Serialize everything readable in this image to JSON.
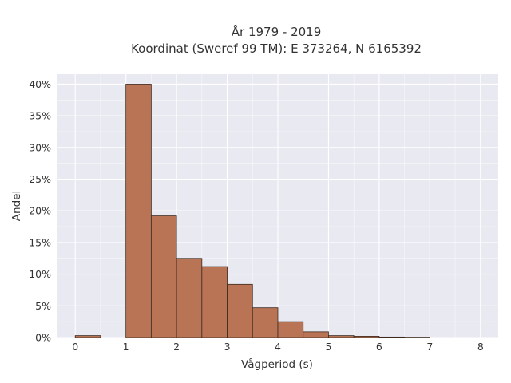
{
  "chart_data": {
    "type": "bar",
    "title": "År 1979 - 2019",
    "subtitle": "Koordinat (Sweref 99 TM): E 373264, N 6165392",
    "xlabel": "Vågperiod (s)",
    "ylabel": "Andel",
    "xlim": [
      -0.35,
      8.35
    ],
    "ylim": [
      0,
      0.4157
    ],
    "x_ticks": [
      0,
      1,
      2,
      3,
      4,
      5,
      6,
      7,
      8
    ],
    "y_ticks": [
      0,
      0.05,
      0.1,
      0.15,
      0.2,
      0.25,
      0.3,
      0.35,
      0.4
    ],
    "y_tick_labels": [
      "0%",
      "5%",
      "10%",
      "15%",
      "20%",
      "25%",
      "30%",
      "35%",
      "40%"
    ],
    "bin_width": 0.5,
    "bins": [
      {
        "x0": 0.0,
        "value": 0.003
      },
      {
        "x0": 1.0,
        "value": 0.4
      },
      {
        "x0": 1.5,
        "value": 0.192
      },
      {
        "x0": 2.0,
        "value": 0.125
      },
      {
        "x0": 2.5,
        "value": 0.112
      },
      {
        "x0": 3.0,
        "value": 0.084
      },
      {
        "x0": 3.5,
        "value": 0.047
      },
      {
        "x0": 4.0,
        "value": 0.025
      },
      {
        "x0": 4.5,
        "value": 0.009
      },
      {
        "x0": 5.0,
        "value": 0.003
      },
      {
        "x0": 5.5,
        "value": 0.002
      },
      {
        "x0": 6.0,
        "value": 0.0008
      },
      {
        "x0": 6.5,
        "value": 0.0005
      }
    ],
    "grid": true,
    "colors": {
      "bar_fill": "#b97455",
      "bar_stroke": "#3d2a1f",
      "plot_background": "#e9e9f1",
      "grid": "#ffffff"
    }
  }
}
